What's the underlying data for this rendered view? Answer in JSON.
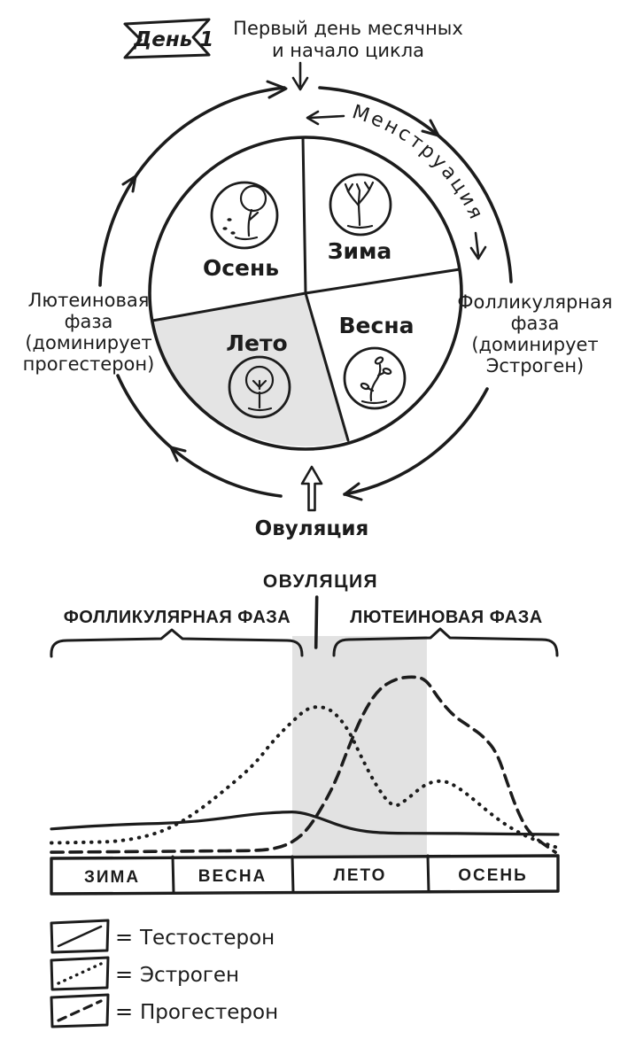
{
  "colors": {
    "ink": "#1c1c1c",
    "background": "#ffffff",
    "summer_wedge": "#e4e4e4",
    "highlight_band": "#e2e2e2"
  },
  "cycle": {
    "banner_label": "День 1",
    "top_note": [
      "Первый день месячных",
      "и начало цикла"
    ],
    "ring_label": "Менструация",
    "left_phase": [
      "Лютеиновая",
      "фаза",
      "(доминирует",
      "прогестерон)"
    ],
    "right_phase": [
      "Фолликулярная",
      "фаза",
      "(доминирует",
      "Эстроген)"
    ],
    "ovulation_label": "Овуляция",
    "quadrants": [
      {
        "season": "Осень",
        "position": "top-left",
        "icon": "autumn-tree-falling-leaves",
        "shaded": false
      },
      {
        "season": "Зима",
        "position": "top-right",
        "icon": "bare-winter-tree",
        "shaded": false
      },
      {
        "season": "Лето",
        "position": "bottom-left",
        "icon": "leafy-summer-tree",
        "shaded": true
      },
      {
        "season": "Весна",
        "position": "bottom-right",
        "icon": "spring-sprout",
        "shaded": false
      }
    ]
  },
  "chart_data": {
    "type": "line",
    "title": "ОВУЛЯЦИЯ",
    "phase_left": "ФОЛЛИКУЛЯРНАЯ ФАЗА",
    "phase_right": "ЛЮТЕИНОВАЯ ФАЗА",
    "xlabel": "",
    "ylabel": "",
    "grid": false,
    "legend_position": "bottom-left",
    "x_categories": [
      "ЗИМА",
      "ВЕСНА",
      "ЛЕТО",
      "ОСЕНЬ"
    ],
    "category_boundaries_pct": [
      0,
      23.95,
      47.55,
      74.3,
      100
    ],
    "ovulation_marker_pct": 52.4,
    "highlight_band": {
      "category": "ЛЕТО",
      "x_range_pct": [
        47.55,
        74.1
      ],
      "color": "#e2e2e2"
    },
    "y_axis_note": "relative hormone level, 0-100 (axis unlabeled in drawing)",
    "equals_sign": "=",
    "series": [
      {
        "name": "Тестостерон",
        "style": "solid",
        "points": [
          [
            0,
            13
          ],
          [
            8,
            14.5
          ],
          [
            17,
            15.5
          ],
          [
            25,
            16
          ],
          [
            33,
            18
          ],
          [
            40,
            20.5
          ],
          [
            46,
            21.5
          ],
          [
            49,
            21.5
          ],
          [
            53,
            18.5
          ],
          [
            57,
            14.5
          ],
          [
            61,
            12
          ],
          [
            66,
            10.8
          ],
          [
            75,
            10.8
          ],
          [
            85,
            10.6
          ],
          [
            100,
            10.2
          ]
        ]
      },
      {
        "name": "Эстроген",
        "style": "dotted",
        "points": [
          [
            0,
            6
          ],
          [
            8,
            6.3
          ],
          [
            13,
            6.7
          ],
          [
            19,
            9.3
          ],
          [
            24,
            14
          ],
          [
            29,
            22
          ],
          [
            34,
            32
          ],
          [
            40,
            45
          ],
          [
            44,
            58
          ],
          [
            48,
            68
          ],
          [
            50.5,
            73.5
          ],
          [
            53,
            74.5
          ],
          [
            55.5,
            72.5
          ],
          [
            58.5,
            63.5
          ],
          [
            61,
            50
          ],
          [
            64,
            35
          ],
          [
            67.5,
            23
          ],
          [
            70.5,
            28.5
          ],
          [
            74,
            36
          ],
          [
            77.5,
            37.5
          ],
          [
            80.5,
            33.5
          ],
          [
            83.5,
            27.5
          ],
          [
            86.5,
            21
          ],
          [
            90,
            14.5
          ],
          [
            93.5,
            9.5
          ],
          [
            97,
            6
          ],
          [
            100,
            3.5
          ]
        ]
      },
      {
        "name": "Прогестерон",
        "style": "dashed",
        "points": [
          [
            0,
            1.3
          ],
          [
            15,
            1.6
          ],
          [
            25,
            1.8
          ],
          [
            35,
            2
          ],
          [
            42,
            2.2
          ],
          [
            45.5,
            4
          ],
          [
            48,
            7
          ],
          [
            50.5,
            12.5
          ],
          [
            53,
            22
          ],
          [
            56,
            36
          ],
          [
            58.5,
            53
          ],
          [
            61.5,
            71
          ],
          [
            64.5,
            83
          ],
          [
            68,
            88.5
          ],
          [
            71.5,
            89.5
          ],
          [
            74,
            88
          ],
          [
            76.5,
            78
          ],
          [
            79.5,
            69.5
          ],
          [
            82.5,
            64.5
          ],
          [
            85.5,
            59
          ],
          [
            88,
            51
          ],
          [
            90,
            36
          ],
          [
            92,
            22
          ],
          [
            94,
            12
          ],
          [
            96.5,
            6.5
          ],
          [
            99.5,
            1.3
          ]
        ]
      }
    ],
    "legend": [
      {
        "style": "solid",
        "label": "Тестостерон"
      },
      {
        "style": "dotted",
        "label": "Эстроген"
      },
      {
        "style": "dashed",
        "label": "Прогестерон"
      }
    ]
  }
}
